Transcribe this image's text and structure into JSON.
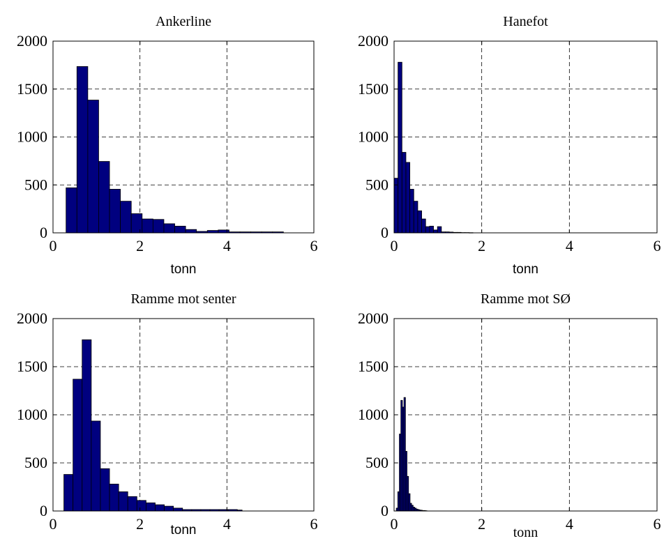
{
  "colors": {
    "bar": "#00007f",
    "grid": "#000000",
    "background": "#ffffff"
  },
  "chart_data": [
    {
      "type": "bar",
      "title": "Ankerline",
      "xlabel": "tonn",
      "ylabel": "",
      "xlim": [
        0,
        6
      ],
      "ylim": [
        0,
        2000
      ],
      "xticks": [
        0,
        2,
        4,
        6
      ],
      "yticks": [
        0,
        500,
        1000,
        1500,
        2000
      ],
      "grid": true,
      "bin_edges": [
        0.3,
        0.55,
        0.8,
        1.05,
        1.3,
        1.55,
        1.8,
        2.05,
        2.3,
        2.55,
        2.8,
        3.05,
        3.3,
        3.55,
        3.8,
        4.05,
        4.3,
        4.55,
        4.8,
        5.05,
        5.3
      ],
      "values": [
        470,
        1735,
        1385,
        745,
        455,
        330,
        200,
        145,
        140,
        95,
        70,
        35,
        15,
        25,
        30,
        10,
        10,
        10,
        10,
        10
      ]
    },
    {
      "type": "bar",
      "title": "Hanefot",
      "xlabel": "tonn",
      "ylabel": "",
      "xlim": [
        0,
        6
      ],
      "ylim": [
        0,
        2000
      ],
      "xticks": [
        0,
        2,
        4,
        6
      ],
      "yticks": [
        0,
        500,
        1000,
        1500,
        2000
      ],
      "grid": true,
      "bin_edges": [
        0.0,
        0.09,
        0.18,
        0.27,
        0.36,
        0.45,
        0.54,
        0.63,
        0.72,
        0.81,
        0.9,
        0.99,
        1.08,
        1.17,
        1.26,
        1.35,
        1.44,
        1.53,
        1.62,
        1.71,
        1.8
      ],
      "values": [
        570,
        1780,
        840,
        735,
        455,
        330,
        230,
        145,
        65,
        70,
        30,
        65,
        10,
        10,
        8,
        5,
        5,
        3,
        3,
        2
      ]
    },
    {
      "type": "bar",
      "title": "Ramme mot senter",
      "xlabel": "tonn",
      "ylabel": "",
      "xlim": [
        0,
        6
      ],
      "ylim": [
        0,
        2000
      ],
      "xticks": [
        0,
        2,
        4,
        6
      ],
      "yticks": [
        0,
        500,
        1000,
        1500,
        2000
      ],
      "grid": true,
      "bin_edges": [
        0.25,
        0.46,
        0.67,
        0.88,
        1.09,
        1.3,
        1.51,
        1.72,
        1.93,
        2.14,
        2.35,
        2.56,
        2.77,
        2.98,
        3.19,
        3.4,
        3.61,
        3.82,
        4.03,
        4.24,
        4.35
      ],
      "values": [
        380,
        1370,
        1780,
        935,
        440,
        280,
        200,
        150,
        110,
        85,
        65,
        50,
        30,
        15,
        15,
        15,
        15,
        15,
        15,
        10
      ]
    },
    {
      "type": "bar",
      "title": "Ramme mot SØ",
      "xlabel": "tonn",
      "ylabel": "",
      "xlim": [
        0,
        6
      ],
      "ylim": [
        0,
        2000
      ],
      "xticks": [
        0,
        2,
        4,
        6
      ],
      "yticks": [
        0,
        500,
        1000,
        1500,
        2000
      ],
      "grid": true,
      "bin_edges": [
        0.05,
        0.085,
        0.12,
        0.155,
        0.19,
        0.225,
        0.26,
        0.295,
        0.33,
        0.365,
        0.4,
        0.435,
        0.47,
        0.505,
        0.54,
        0.575,
        0.61,
        0.645,
        0.68,
        0.715,
        0.75
      ],
      "values": [
        30,
        200,
        800,
        1150,
        1080,
        1180,
        620,
        360,
        180,
        80,
        60,
        40,
        30,
        20,
        15,
        10,
        8,
        5,
        5,
        3
      ]
    }
  ]
}
